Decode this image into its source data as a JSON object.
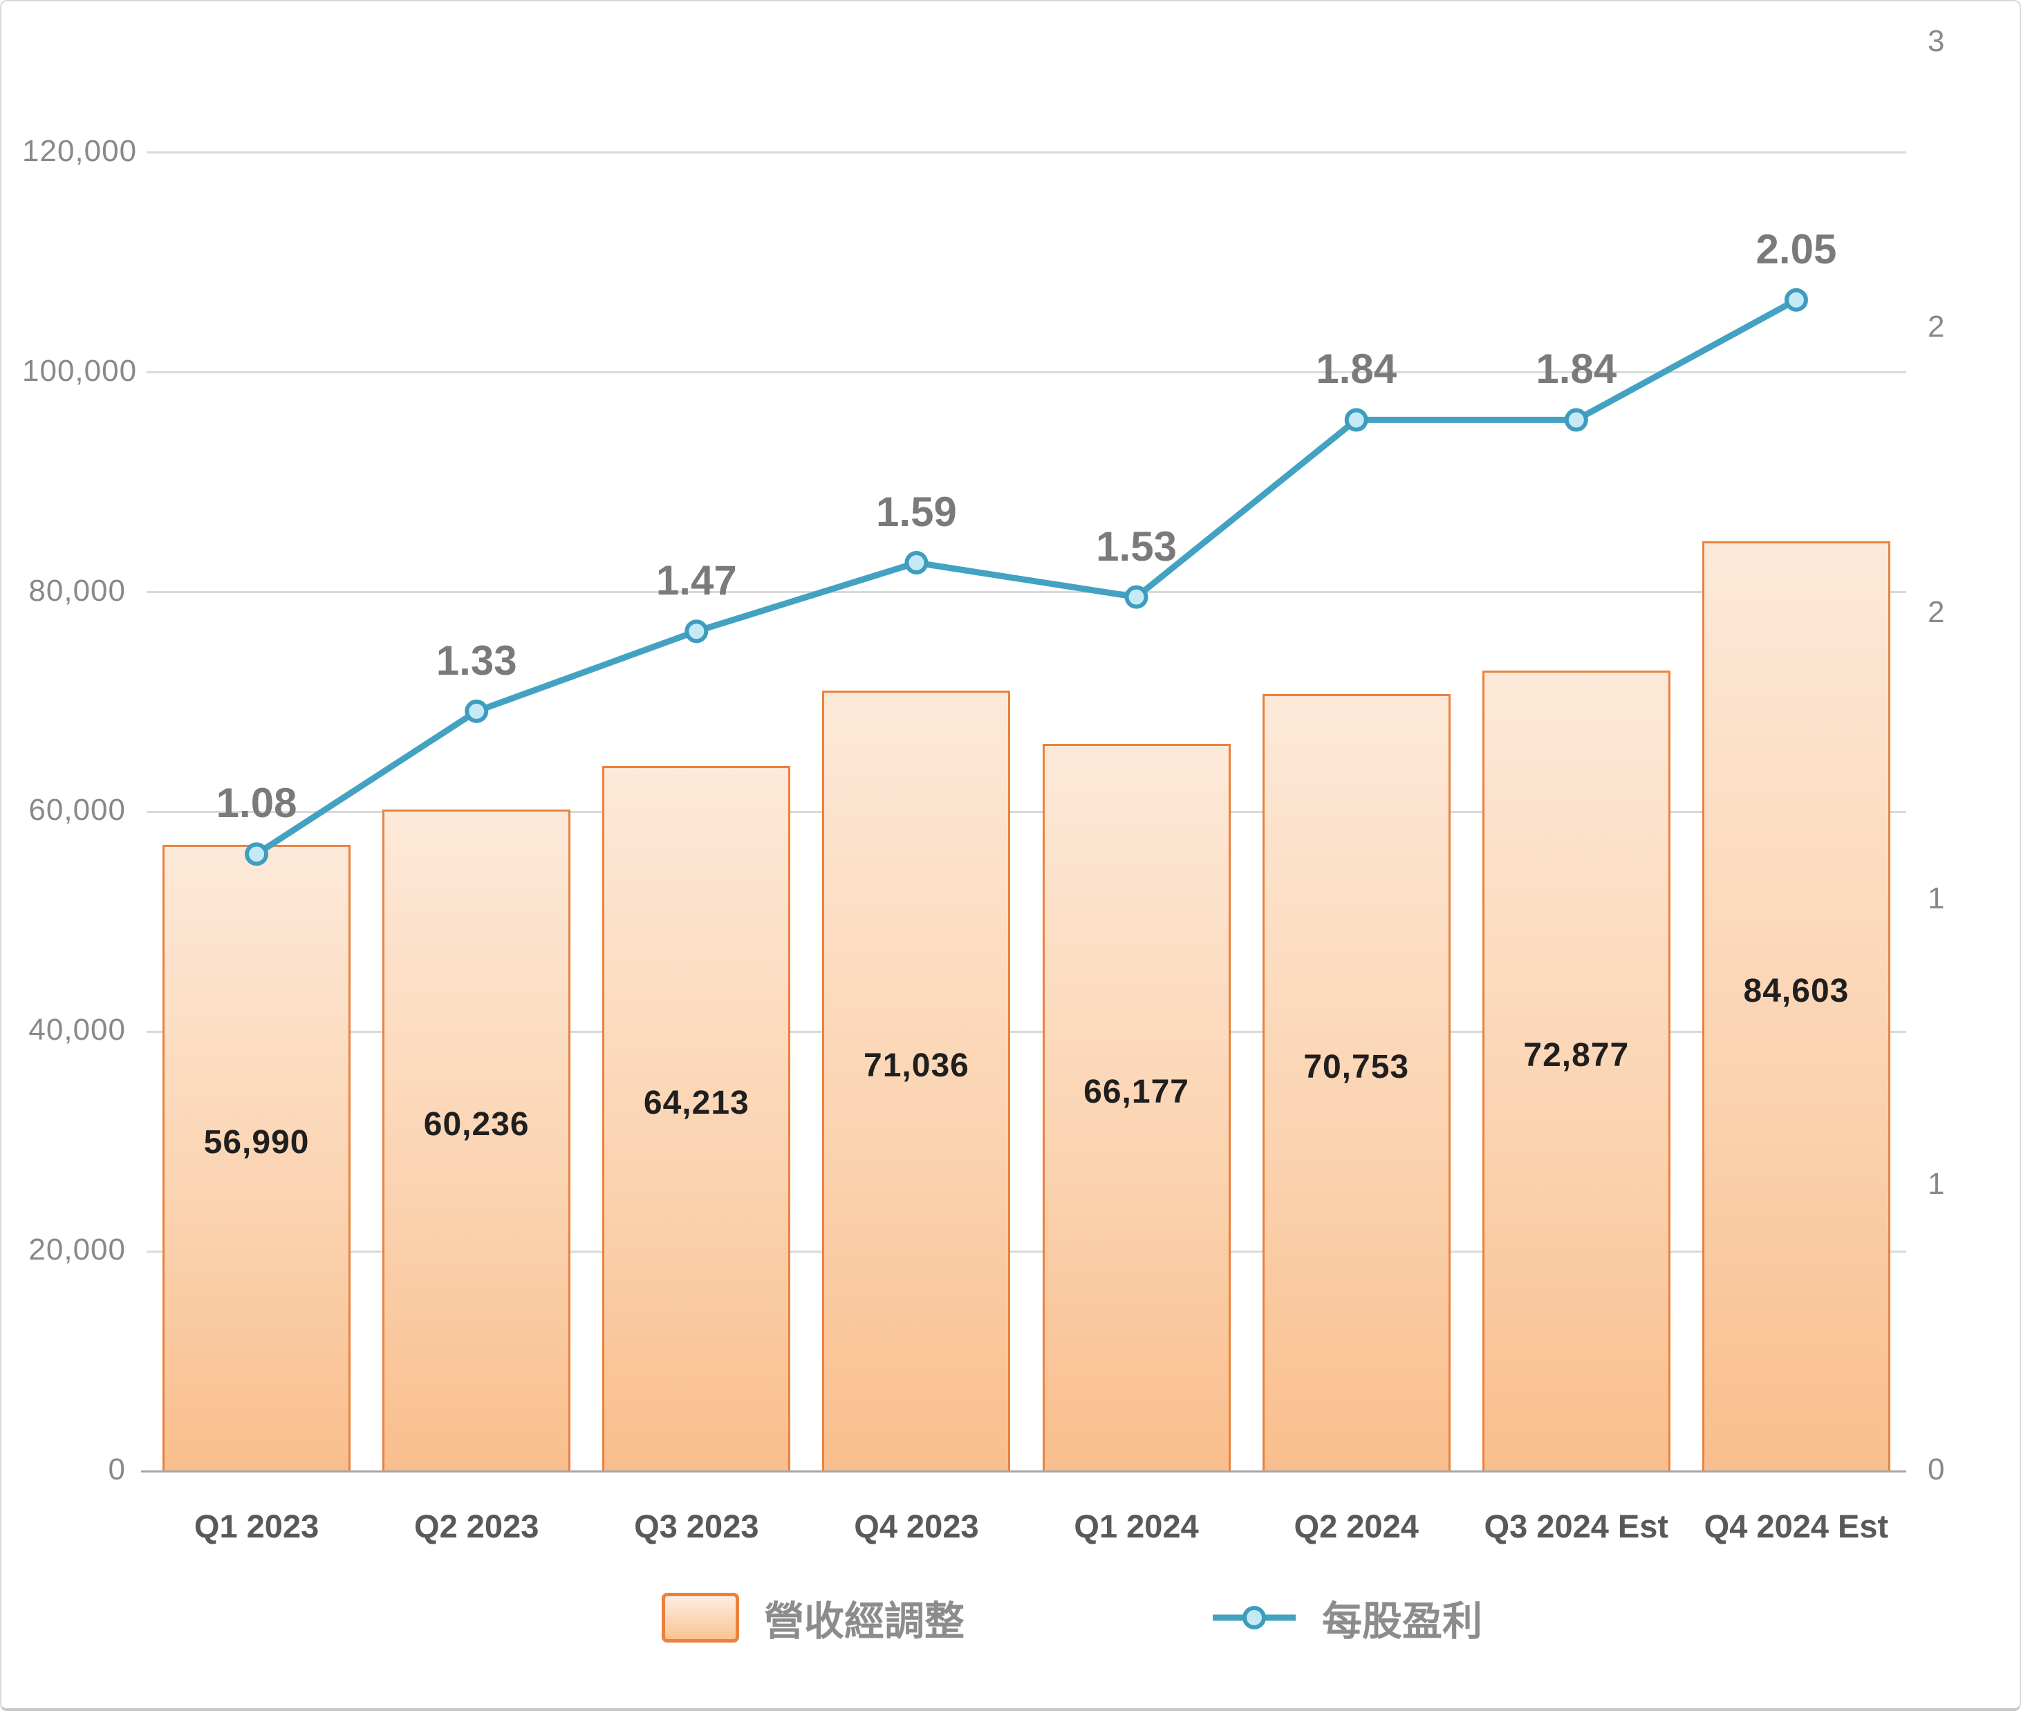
{
  "chart_data": {
    "type": "combo-bar-line",
    "categories": [
      "Q1 2023",
      "Q2 2023",
      "Q3 2023",
      "Q4 2023",
      "Q1 2024",
      "Q2 2024",
      "Q3 2024 Est",
      "Q4 2024 Est"
    ],
    "series": [
      {
        "name": "營收經調整",
        "type": "bar",
        "axis": "left",
        "values": [
          56990,
          60236,
          64213,
          71036,
          66177,
          70753,
          72877,
          84603
        ],
        "labels": [
          "56,990",
          "60,236",
          "64,213",
          "71,036",
          "66,177",
          "70,753",
          "72,877",
          "84,603"
        ]
      },
      {
        "name": "每股盈利",
        "type": "line",
        "axis": "right",
        "values": [
          1.08,
          1.33,
          1.47,
          1.59,
          1.53,
          1.84,
          1.84,
          2.05
        ],
        "labels": [
          "1.08",
          "1.33",
          "1.47",
          "1.59",
          "1.53",
          "1.84",
          "1.84",
          "2.05"
        ]
      }
    ],
    "left_axis": {
      "min": 0,
      "max": 130000,
      "tick_interval": 20000,
      "tick_values": [
        0,
        20000,
        40000,
        60000,
        80000,
        100000,
        120000
      ],
      "tick_labels": [
        "0",
        "20,000",
        "40,000",
        "60,000",
        "80,000",
        "100,000",
        "120,000"
      ]
    },
    "right_axis": {
      "min": 0,
      "max": 2.5,
      "tick_interval": 0.5,
      "tick_values": [
        0,
        0.5,
        1,
        1.5,
        2,
        2.5
      ],
      "tick_labels": [
        "0",
        "1",
        "1",
        "2",
        "2",
        "3"
      ]
    },
    "grid": true,
    "legend_position": "bottom",
    "colors": {
      "bar_fill_top": "#FDE9D9",
      "bar_fill_bottom": "#F9BE8D",
      "bar_border": "#E9823D",
      "line": "#43A2C2",
      "marker_fill": "#C6E9F6",
      "marker_border": "#3E9DBE",
      "bar_label_text": "#1F1F1F",
      "eps_label_text": "#7A7A7A",
      "axis_tick_text": "#898989",
      "category_text": "#595959",
      "gridline": "#D9D9D9",
      "axis_line": "#A6A6A6"
    }
  }
}
